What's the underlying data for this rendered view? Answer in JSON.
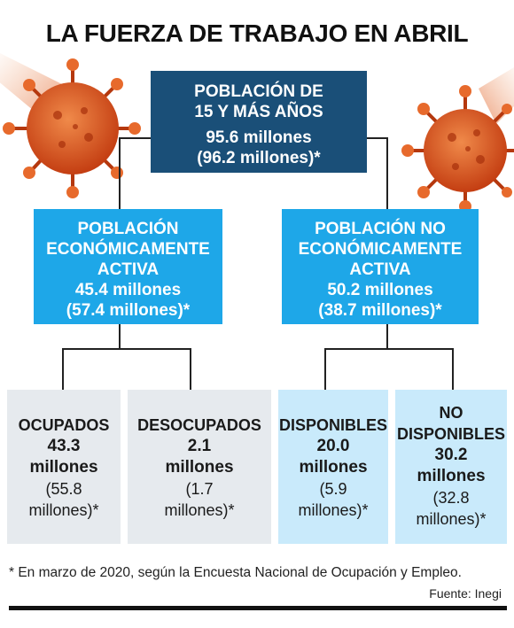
{
  "title": "LA FUERZA DE TRABAJO EN ABRIL",
  "root": {
    "line1": "POBLACIÓN DE",
    "line2": "15 Y MÁS AÑOS",
    "value": "95.6 millones",
    "prev": "(96.2 millones)*"
  },
  "active": {
    "line1": "POBLACIÓN",
    "line2": "ECONÓMICAMENTE",
    "line3": "ACTIVA",
    "value": "45.4 millones",
    "prev": "(57.4 millones)*"
  },
  "inactive": {
    "line1": "POBLACIÓN NO",
    "line2": "ECONÓMICAMENTE",
    "line3": "ACTIVA",
    "value": "50.2 millones",
    "prev": "(38.7 millones)*"
  },
  "leaves": [
    {
      "label1": "OCUPADOS",
      "label2": "",
      "value": "43.3",
      "unit": "millones",
      "prev1": "(55.8",
      "prev2": "millones)*"
    },
    {
      "label1": "DESOCUPADOS",
      "label2": "",
      "value": "2.1",
      "unit": "millones",
      "prev1": "(1.7",
      "prev2": "millones)*"
    },
    {
      "label1": "DISPONIBLES",
      "label2": "",
      "value": "20.0",
      "unit": "millones",
      "prev1": "(5.9",
      "prev2": "millones)*"
    },
    {
      "label1": "NO",
      "label2": "DISPONIBLES",
      "value": "30.2",
      "unit": "millones",
      "prev1": "(32.8",
      "prev2": "millones)*"
    }
  ],
  "footnote": "* En marzo de 2020, según la Encuesta Nacional de Ocupación y Empleo.",
  "source": "Fuente: Inegi",
  "colors": {
    "root": "#1a4f78",
    "mid": "#1ea7e8",
    "leaf_gray": "#e6eaee",
    "leaf_blue": "#c9eafb",
    "virus": "#e0541d"
  },
  "icons": [
    "virus-icon-left",
    "virus-icon-right"
  ]
}
